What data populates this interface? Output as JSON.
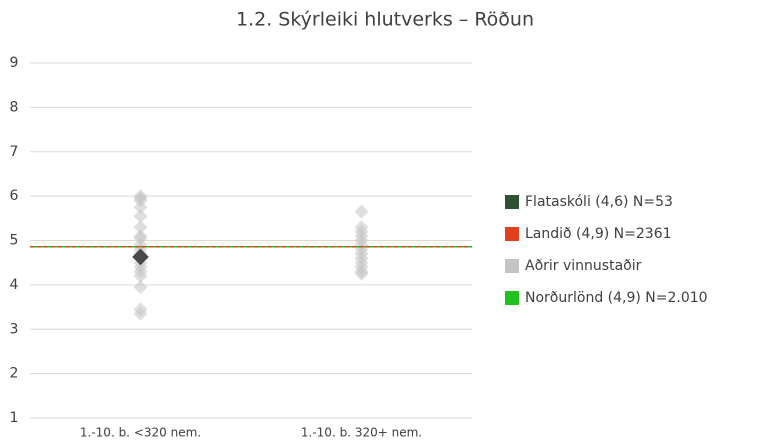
{
  "chart_data": {
    "type": "scatter",
    "title": "1.2. Skýrleiki hlutverks – Röðun",
    "categories": [
      "1.-10. b. <320 nem.",
      "1.-10. b. 320+ nem."
    ],
    "ylim": [
      1,
      9
    ],
    "yticks": [
      1,
      2,
      3,
      4,
      5,
      6,
      7,
      8,
      9
    ],
    "grid": true,
    "legend": "right",
    "series": [
      {
        "name": "Flataskóli (4,6) N=53",
        "color": "#2f5233",
        "values": [
          4.63,
          null
        ]
      },
      {
        "name": "Landið (4,9) N=2361",
        "color": "#e0401e",
        "line": 4.86,
        "dashed": true
      },
      {
        "name": "Aðrir vinnustaðir",
        "color": "#c4c4c4",
        "values": [
          [
            6.0,
            5.95,
            5.9,
            5.75,
            5.55,
            5.3,
            5.1,
            5.05,
            4.9,
            4.8,
            4.7,
            4.5,
            4.4,
            4.3,
            4.2,
            3.95,
            3.45,
            3.35
          ],
          [
            5.65,
            5.3,
            5.2,
            5.1,
            5.0,
            4.9,
            4.8,
            4.7,
            4.6,
            4.5,
            4.4,
            4.3,
            4.25
          ]
        ]
      },
      {
        "name": "Norðurlönd (4,9) N=2.010",
        "color": "#1fc21f",
        "line": 4.86
      }
    ]
  }
}
